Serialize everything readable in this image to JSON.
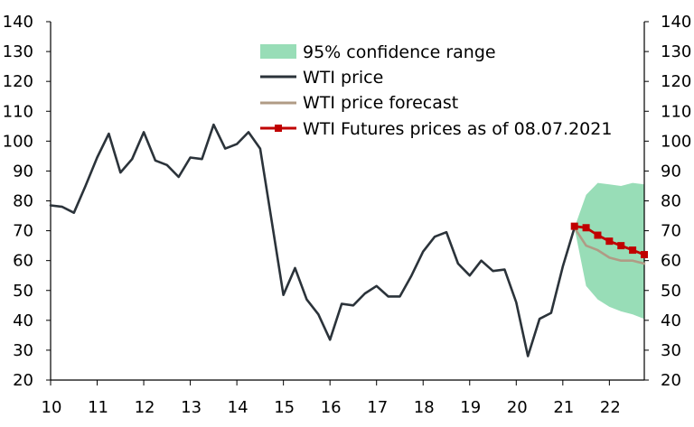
{
  "chart_data": {
    "type": "line",
    "xlim": [
      2010,
      2022.75
    ],
    "ylim": [
      20,
      140
    ],
    "y_ticks": [
      20,
      30,
      40,
      50,
      60,
      70,
      80,
      90,
      100,
      110,
      120,
      130,
      140
    ],
    "x_tick_labels": [
      "10",
      "11",
      "12",
      "13",
      "14",
      "15",
      "16",
      "17",
      "18",
      "19",
      "20",
      "21",
      "22"
    ],
    "grid": false,
    "legend_placement": "top-center",
    "legend": [
      {
        "key": "band",
        "label": "95% confidence range"
      },
      {
        "key": "price",
        "label": "WTI price"
      },
      {
        "key": "forecast",
        "label": "WTI price forecast"
      },
      {
        "key": "futures",
        "label": "WTI Futures prices as of 08.07.2021"
      }
    ],
    "colors": {
      "band": "#98ddb7",
      "price": "#2b333a",
      "forecast": "#b09b85",
      "futures": "#c00000",
      "axis": "#000000"
    },
    "series": [
      {
        "name": "WTI price",
        "key": "price",
        "x": [
          2010.0,
          2010.25,
          2010.5,
          2010.75,
          2011.0,
          2011.25,
          2011.5,
          2011.75,
          2012.0,
          2012.25,
          2012.5,
          2012.75,
          2013.0,
          2013.25,
          2013.5,
          2013.75,
          2014.0,
          2014.25,
          2014.5,
          2014.75,
          2015.0,
          2015.25,
          2015.5,
          2015.75,
          2016.0,
          2016.25,
          2016.5,
          2016.75,
          2017.0,
          2017.25,
          2017.5,
          2017.75,
          2018.0,
          2018.25,
          2018.5,
          2018.75,
          2019.0,
          2019.25,
          2019.5,
          2019.75,
          2020.0,
          2020.25,
          2020.5,
          2020.75,
          2021.0,
          2021.25
        ],
        "values": [
          78.5,
          78.0,
          76.0,
          85.0,
          94.5,
          102.5,
          89.5,
          94.0,
          103.0,
          93.5,
          92.0,
          88.0,
          94.5,
          94.0,
          105.5,
          97.5,
          99.0,
          103.0,
          97.5,
          73.0,
          48.5,
          57.5,
          47.0,
          42.0,
          33.5,
          45.5,
          45.0,
          49.0,
          51.5,
          48.0,
          48.0,
          55.0,
          63.0,
          68.0,
          69.5,
          59.0,
          55.0,
          60.0,
          56.5,
          57.0,
          46.0,
          28.0,
          40.5,
          42.5,
          58.0,
          71.0
        ]
      },
      {
        "name": "WTI price forecast",
        "key": "forecast",
        "x": [
          2021.25,
          2021.5,
          2021.75,
          2022.0,
          2022.25,
          2022.5,
          2022.75
        ],
        "values": [
          71.0,
          65.0,
          63.5,
          61.0,
          60.0,
          60.0,
          59.0
        ]
      },
      {
        "name": "WTI Futures prices as of 08.07.2021",
        "key": "futures",
        "x": [
          2021.25,
          2021.5,
          2021.75,
          2022.0,
          2022.25,
          2022.5,
          2022.75
        ],
        "values": [
          71.5,
          71.0,
          68.5,
          66.5,
          65.0,
          63.5,
          62.0
        ]
      }
    ],
    "band": {
      "name": "95% confidence range",
      "key": "band",
      "x": [
        2021.25,
        2021.5,
        2021.75,
        2022.0,
        2022.25,
        2022.5,
        2022.75
      ],
      "upper": [
        71.0,
        82.0,
        86.0,
        85.5,
        85.0,
        86.0,
        85.5
      ],
      "lower": [
        71.0,
        51.5,
        47.0,
        44.5,
        43.0,
        42.0,
        40.5
      ]
    }
  }
}
